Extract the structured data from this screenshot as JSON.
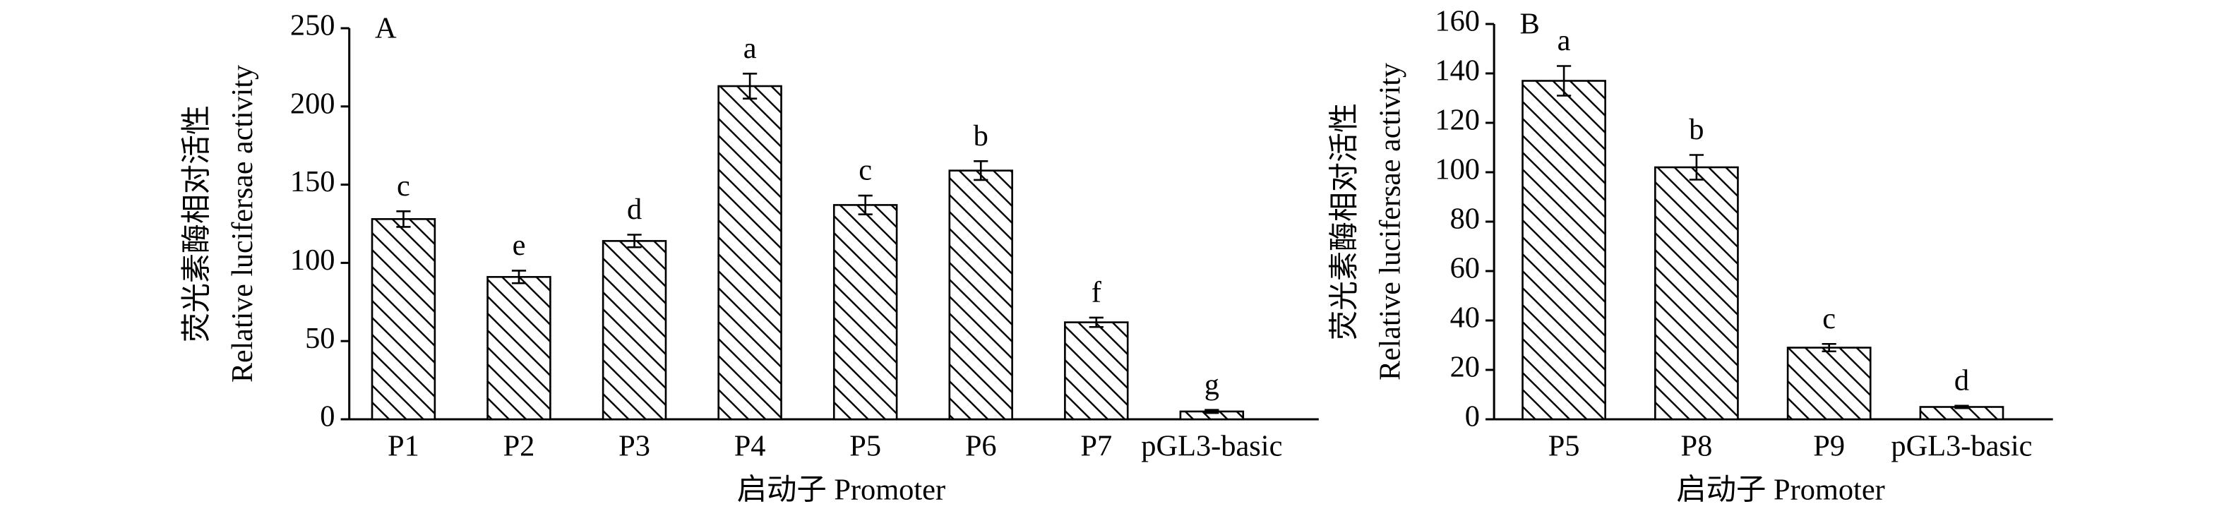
{
  "chart_data": [
    {
      "type": "bar",
      "panel": "A",
      "ylabel_zh": "荧光素酶相对活性",
      "ylabel_en": "Relative lucifersae activity",
      "xlabel": "启动子 Promoter",
      "categories": [
        "P1",
        "P2",
        "P3",
        "P4",
        "P5",
        "P6",
        "P7",
        "pGL3-basic"
      ],
      "values": [
        128,
        91,
        114,
        213,
        137,
        159,
        62,
        5
      ],
      "errors": [
        5,
        4,
        4,
        8,
        6,
        6,
        3,
        1
      ],
      "significance_letters": [
        "c",
        "e",
        "d",
        "a",
        "c",
        "b",
        "f",
        "g"
      ],
      "ylim": [
        0,
        250
      ],
      "yticks": [
        0,
        50,
        100,
        150,
        200,
        250
      ],
      "color": "#ffffff"
    },
    {
      "type": "bar",
      "panel": "B",
      "ylabel_zh": "荧光素酶相对活性",
      "ylabel_en": "Relative lucifersae activity",
      "xlabel": "启动子 Promoter",
      "categories": [
        "P5",
        "P8",
        "P9",
        "pGL3-basic"
      ],
      "values": [
        137,
        102,
        29,
        5
      ],
      "errors": [
        6,
        5,
        1.5,
        0.5
      ],
      "significance_letters": [
        "a",
        "b",
        "c",
        "d"
      ],
      "ylim": [
        0,
        160
      ],
      "yticks": [
        0,
        20,
        40,
        60,
        80,
        100,
        120,
        140,
        160
      ],
      "color": "#ffffff"
    }
  ]
}
